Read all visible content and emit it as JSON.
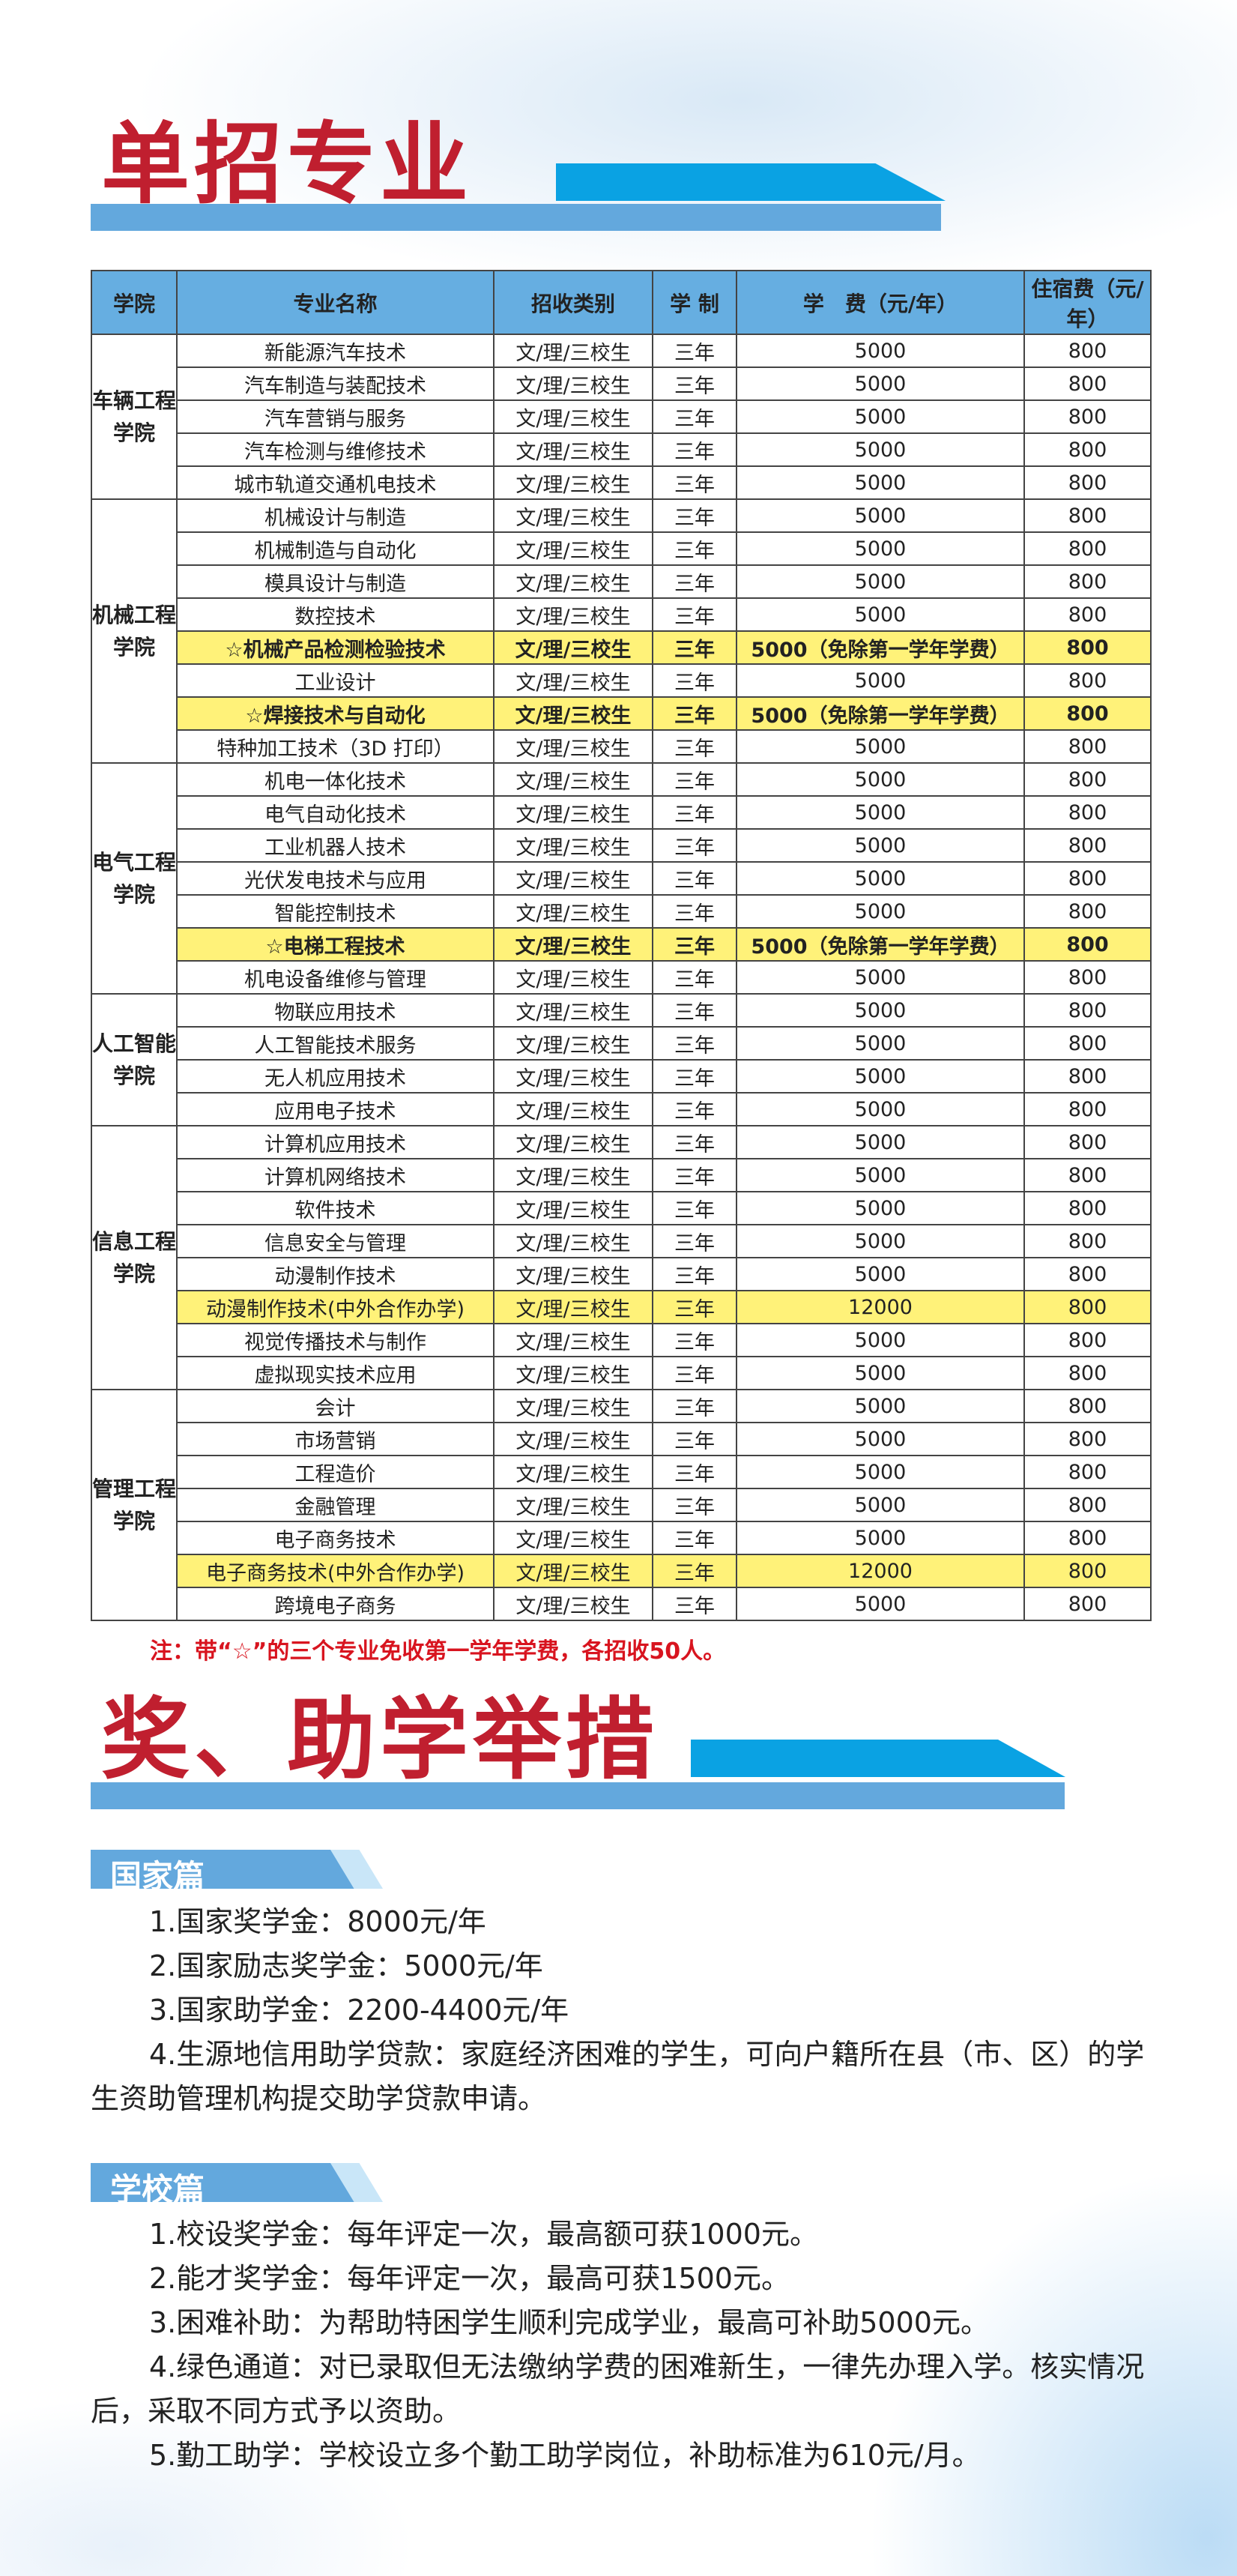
{
  "section1": {
    "title": "单招专业"
  },
  "table": {
    "headers": [
      "学院",
      "专业名称",
      "招收类别",
      "学 制",
      "学　费（元/年）",
      "住宿费（元/年）"
    ],
    "colleges": [
      {
        "name": "车辆工程学院",
        "rows": [
          [
            "新能源汽车技术",
            "文/理/三校生",
            "三年",
            "5000",
            "800",
            false
          ],
          [
            "汽车制造与装配技术",
            "文/理/三校生",
            "三年",
            "5000",
            "800",
            false
          ],
          [
            "汽车营销与服务",
            "文/理/三校生",
            "三年",
            "5000",
            "800",
            false
          ],
          [
            "汽车检测与维修技术",
            "文/理/三校生",
            "三年",
            "5000",
            "800",
            false
          ],
          [
            "城市轨道交通机电技术",
            "文/理/三校生",
            "三年",
            "5000",
            "800",
            false
          ]
        ]
      },
      {
        "name": "机械工程学院",
        "rows": [
          [
            "机械设计与制造",
            "文/理/三校生",
            "三年",
            "5000",
            "800",
            false
          ],
          [
            "机械制造与自动化",
            "文/理/三校生",
            "三年",
            "5000",
            "800",
            false
          ],
          [
            "模具设计与制造",
            "文/理/三校生",
            "三年",
            "5000",
            "800",
            false
          ],
          [
            "数控技术",
            "文/理/三校生",
            "三年",
            "5000",
            "800",
            false
          ],
          [
            "☆机械产品检测检验技术",
            "文/理/三校生",
            "三年",
            "5000（免除第一学年学费）",
            "800",
            true
          ],
          [
            "工业设计",
            "文/理/三校生",
            "三年",
            "5000",
            "800",
            false
          ],
          [
            "☆焊接技术与自动化",
            "文/理/三校生",
            "三年",
            "5000（免除第一学年学费）",
            "800",
            true
          ],
          [
            "特种加工技术（3D 打印）",
            "文/理/三校生",
            "三年",
            "5000",
            "800",
            false
          ]
        ]
      },
      {
        "name": "电气工程学院",
        "rows": [
          [
            "机电一体化技术",
            "文/理/三校生",
            "三年",
            "5000",
            "800",
            false
          ],
          [
            "电气自动化技术",
            "文/理/三校生",
            "三年",
            "5000",
            "800",
            false
          ],
          [
            "工业机器人技术",
            "文/理/三校生",
            "三年",
            "5000",
            "800",
            false
          ],
          [
            "光伏发电技术与应用",
            "文/理/三校生",
            "三年",
            "5000",
            "800",
            false
          ],
          [
            "智能控制技术",
            "文/理/三校生",
            "三年",
            "5000",
            "800",
            false
          ],
          [
            "☆电梯工程技术",
            "文/理/三校生",
            "三年",
            "5000（免除第一学年学费）",
            "800",
            true
          ],
          [
            "机电设备维修与管理",
            "文/理/三校生",
            "三年",
            "5000",
            "800",
            false
          ]
        ]
      },
      {
        "name": "人工智能学院",
        "rows": [
          [
            "物联应用技术",
            "文/理/三校生",
            "三年",
            "5000",
            "800",
            false
          ],
          [
            "人工智能技术服务",
            "文/理/三校生",
            "三年",
            "5000",
            "800",
            false
          ],
          [
            "无人机应用技术",
            "文/理/三校生",
            "三年",
            "5000",
            "800",
            false
          ],
          [
            "应用电子技术",
            "文/理/三校生",
            "三年",
            "5000",
            "800",
            false
          ]
        ]
      },
      {
        "name": "信息工程学院",
        "rows": [
          [
            "计算机应用技术",
            "文/理/三校生",
            "三年",
            "5000",
            "800",
            false
          ],
          [
            "计算机网络技术",
            "文/理/三校生",
            "三年",
            "5000",
            "800",
            false
          ],
          [
            "软件技术",
            "文/理/三校生",
            "三年",
            "5000",
            "800",
            false
          ],
          [
            "信息安全与管理",
            "文/理/三校生",
            "三年",
            "5000",
            "800",
            false
          ],
          [
            "动漫制作技术",
            "文/理/三校生",
            "三年",
            "5000",
            "800",
            false
          ],
          [
            "动漫制作技术(中外合作办学)",
            "文/理/三校生",
            "三年",
            "12000",
            "800",
            "soft"
          ],
          [
            "视觉传播技术与制作",
            "文/理/三校生",
            "三年",
            "5000",
            "800",
            false
          ],
          [
            "虚拟现实技术应用",
            "文/理/三校生",
            "三年",
            "5000",
            "800",
            false
          ]
        ]
      },
      {
        "name": "管理工程学院",
        "rows": [
          [
            "会计",
            "文/理/三校生",
            "三年",
            "5000",
            "800",
            false
          ],
          [
            "市场营销",
            "文/理/三校生",
            "三年",
            "5000",
            "800",
            false
          ],
          [
            "工程造价",
            "文/理/三校生",
            "三年",
            "5000",
            "800",
            false
          ],
          [
            "金融管理",
            "文/理/三校生",
            "三年",
            "5000",
            "800",
            false
          ],
          [
            "电子商务技术",
            "文/理/三校生",
            "三年",
            "5000",
            "800",
            false
          ],
          [
            "电子商务技术(中外合作办学)",
            "文/理/三校生",
            "三年",
            "12000",
            "800",
            "soft"
          ],
          [
            "跨境电子商务",
            "文/理/三校生",
            "三年",
            "5000",
            "800",
            false
          ]
        ]
      }
    ],
    "note": "注：带“☆”的三个专业免收第一学年学费，各招收50人。"
  },
  "section2": {
    "title": "奖、助学举措",
    "national": {
      "label": "国家篇",
      "items": [
        "1.国家奖学金：8000元/年",
        "2.国家励志奖学金：5000元/年",
        "3.国家助学金：2200-4400元/年",
        "4.生源地信用助学贷款：家庭经济困难的学生，可向户籍所在县（市、区）的学生资助管理机构提交助学贷款申请。"
      ]
    },
    "school": {
      "label": "学校篇",
      "items": [
        "1.校设奖学金：每年评定一次，最高额可获1000元。",
        "2.能才奖学金：每年评定一次，最高可获1500元。",
        "3.困难补助：为帮助特困学生顺利完成学业，最高可补助5000元。",
        "4.绿色通道：对已录取但无法缴纳学费的困难新生，一律先办理入学。核实情况后，采取不同方式予以资助。",
        "5.勤工助学：学校设立多个勤工助学岗位，补助标准为610元/月。"
      ]
    }
  },
  "colors": {
    "title_red": "#c01f2f",
    "bar_blue": "#63a8dd",
    "accent_blue": "#0aa2e3",
    "highlight_yellow": "#fff279",
    "note_red": "#d8141f"
  }
}
